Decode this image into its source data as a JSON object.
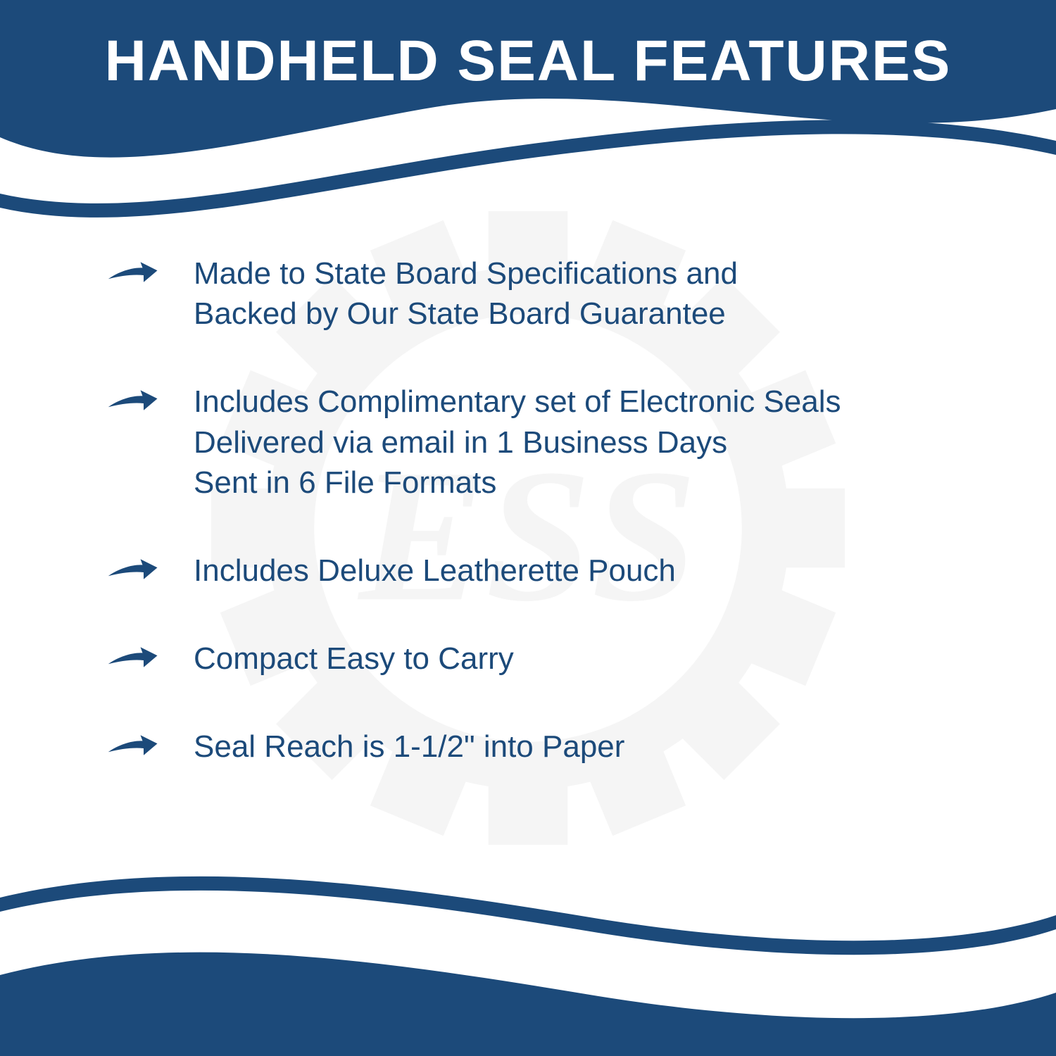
{
  "title": "HANDHELD SEAL FEATURES",
  "colors": {
    "primary": "#1c4a7a",
    "white": "#ffffff",
    "text": "#1c4a7a",
    "watermark": "#888888"
  },
  "watermark_text": "ESS",
  "features": [
    {
      "lines": [
        "Made to State Board Specifications and",
        "Backed by Our State Board Guarantee"
      ]
    },
    {
      "lines": [
        "Includes Complimentary set of Electronic Seals",
        "Delivered via email in 1 Business Days",
        "Sent in 6 File Formats"
      ]
    },
    {
      "lines": [
        "Includes Deluxe Leatherette Pouch"
      ]
    },
    {
      "lines": [
        "Compact Easy to Carry"
      ]
    },
    {
      "lines": [
        "Seal Reach is 1-1/2\" into Paper"
      ]
    }
  ],
  "typography": {
    "title_fontsize": 82,
    "title_weight": 800,
    "feature_fontsize": 44,
    "feature_weight": 500
  }
}
